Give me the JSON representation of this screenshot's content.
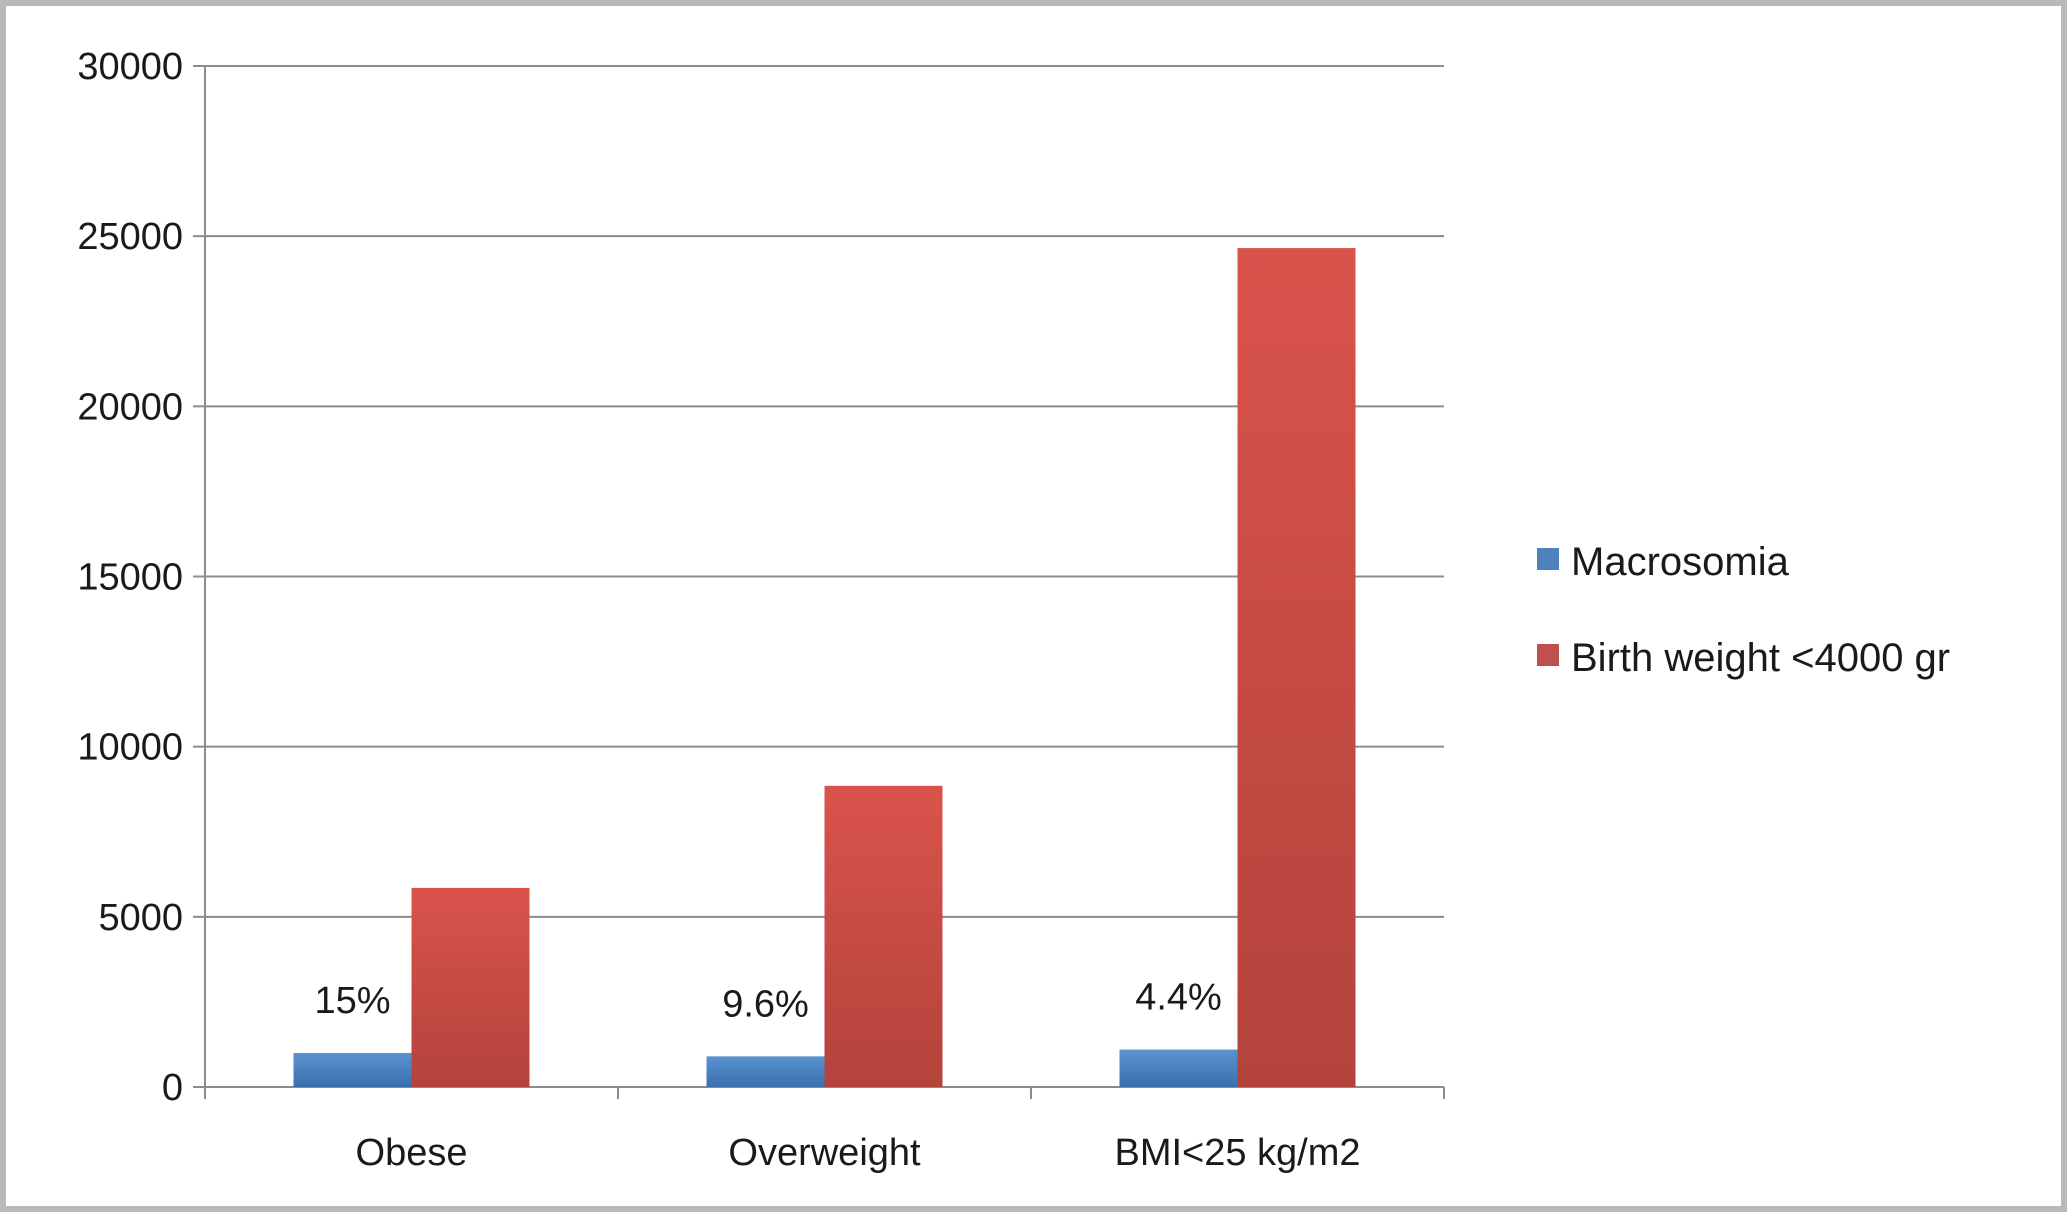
{
  "chart_data": {
    "type": "bar",
    "title": "",
    "xlabel": "",
    "ylabel": "",
    "categories": [
      "Obese",
      "Overweight",
      "BMI<25 kg/m2"
    ],
    "series": [
      {
        "name": "Macrosomia",
        "values": [
          1000,
          900,
          1100
        ],
        "color": "#4f81bd",
        "data_labels": [
          "15%",
          "9.6%",
          "4.4%"
        ]
      },
      {
        "name": "Birth weight <4000 gr",
        "values": [
          5850,
          8850,
          24650
        ],
        "color": "#c0504d",
        "data_labels": []
      }
    ],
    "ylim": [
      0,
      30000
    ],
    "yticks": [
      0,
      5000,
      10000,
      15000,
      20000,
      25000,
      30000
    ],
    "ytick_labels": [
      "0",
      "5000",
      "10000",
      "15000",
      "20000",
      "25000",
      "30000"
    ],
    "grid": true,
    "legend_position": "right"
  }
}
